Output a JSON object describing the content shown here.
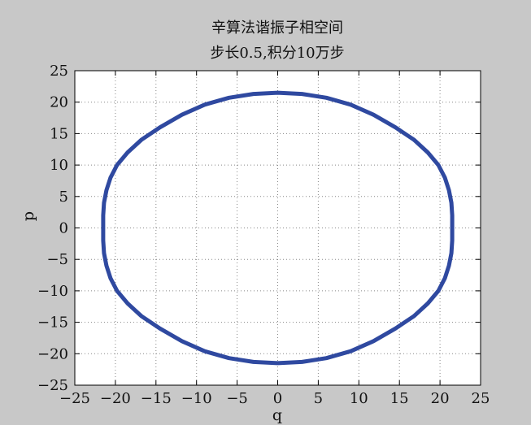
{
  "chart_data": {
    "type": "line",
    "title": [
      "辛算法谐振子相空间",
      "步长0.5,积分10万步"
    ],
    "xlabel": "q",
    "ylabel": "p",
    "xlim": [
      -25,
      25
    ],
    "ylim": [
      -25,
      25
    ],
    "xticks": [
      -25,
      -20,
      -15,
      -10,
      -5,
      0,
      5,
      10,
      15,
      20,
      25
    ],
    "yticks": [
      -25,
      -20,
      -15,
      -10,
      -5,
      0,
      5,
      10,
      15,
      20,
      25
    ],
    "xtick_labels": [
      "−25",
      "−20",
      "−15",
      "−10",
      "−5",
      "0",
      "5",
      "10",
      "15",
      "20",
      "25"
    ],
    "ytick_labels": [
      "−25",
      "−20",
      "−15",
      "−10",
      "−5",
      "0",
      "5",
      "10",
      "15",
      "20",
      "25"
    ],
    "grid": true,
    "series": [
      {
        "color": "#2f49a0",
        "shape": "closed orbit",
        "q_extent": [
          -21.6,
          21.6
        ],
        "p_extent": [
          -21.6,
          21.6
        ],
        "points": [
          [
            21.5,
            0
          ],
          [
            21.5,
            2
          ],
          [
            21.4,
            4
          ],
          [
            21.1,
            6
          ],
          [
            20.6,
            8
          ],
          [
            19.8,
            10
          ],
          [
            18.5,
            12
          ],
          [
            16.8,
            14
          ],
          [
            14.5,
            16
          ],
          [
            11.8,
            18
          ],
          [
            9.0,
            19.6
          ],
          [
            6.0,
            20.7
          ],
          [
            3.0,
            21.3
          ],
          [
            0,
            21.5
          ],
          [
            -3.0,
            21.3
          ],
          [
            -6.0,
            20.7
          ],
          [
            -9.0,
            19.6
          ],
          [
            -11.8,
            18
          ],
          [
            -14.5,
            16
          ],
          [
            -16.8,
            14
          ],
          [
            -18.5,
            12
          ],
          [
            -19.8,
            10
          ],
          [
            -20.6,
            8
          ],
          [
            -21.1,
            6
          ],
          [
            -21.4,
            4
          ],
          [
            -21.5,
            2
          ],
          [
            -21.5,
            0
          ],
          [
            -21.5,
            -2
          ],
          [
            -21.4,
            -4
          ],
          [
            -21.1,
            -6
          ],
          [
            -20.6,
            -8
          ],
          [
            -19.8,
            -10
          ],
          [
            -18.5,
            -12
          ],
          [
            -16.8,
            -14
          ],
          [
            -14.5,
            -16
          ],
          [
            -11.8,
            -18
          ],
          [
            -9.0,
            -19.6
          ],
          [
            -6.0,
            -20.7
          ],
          [
            -3.0,
            -21.3
          ],
          [
            0,
            -21.5
          ],
          [
            3.0,
            -21.3
          ],
          [
            6.0,
            -20.7
          ],
          [
            9.0,
            -19.6
          ],
          [
            11.8,
            -18
          ],
          [
            14.5,
            -16
          ],
          [
            16.8,
            -14
          ],
          [
            18.5,
            -12
          ],
          [
            19.8,
            -10
          ],
          [
            20.6,
            -8
          ],
          [
            21.1,
            -6
          ],
          [
            21.4,
            -4
          ],
          [
            21.5,
            -2
          ],
          [
            21.5,
            0
          ]
        ]
      }
    ]
  },
  "colors": {
    "figure_background": "#c8c8c8",
    "axes_background": "#ffffff",
    "grid": "#888888",
    "line": "#2f49a0"
  }
}
